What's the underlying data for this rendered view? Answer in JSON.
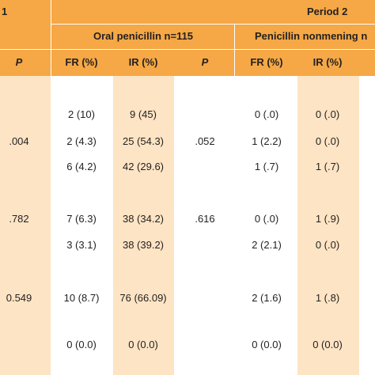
{
  "header": {
    "period1_fragment": "1",
    "period2_label": "Period 2",
    "oral_penicillin_label": "Oral penicillin n=115",
    "penicillin_nonmening_label": "Penicillin nonmening n",
    "columns": {
      "p_left": "P",
      "fr_oral": "FR (%)",
      "ir_oral": "IR (%)",
      "p_mid": "P",
      "fr_nonmening": "FR (%)",
      "ir_nonmening": "IR (%)"
    }
  },
  "rows": [
    {
      "p_left": "",
      "fr_oral": "2 (10)",
      "ir_oral": "9 (45)",
      "p_mid": "",
      "fr_nonmening": "0 (.0)",
      "ir_nonmening": "0 (.0)"
    },
    {
      "p_left": ".004",
      "fr_oral": "2 (4.3)",
      "ir_oral": "25 (54.3)",
      "p_mid": ".052",
      "fr_nonmening": "1 (2.2)",
      "ir_nonmening": "0 (.0)"
    },
    {
      "p_left": "",
      "fr_oral": "6 (4.2)",
      "ir_oral": "42 (29.6)",
      "p_mid": "",
      "fr_nonmening": "1 (.7)",
      "ir_nonmening": "1 (.7)"
    },
    {
      "p_left": ".782",
      "fr_oral": "7 (6.3)",
      "ir_oral": "38 (34.2)",
      "p_mid": ".616",
      "fr_nonmening": "0 (.0)",
      "ir_nonmening": "1 (.9)"
    },
    {
      "p_left": "",
      "fr_oral": "3 (3.1)",
      "ir_oral": "38 (39.2)",
      "p_mid": "",
      "fr_nonmening": "2 (2.1)",
      "ir_nonmening": "0 (.0)"
    },
    {
      "p_left": "0.549",
      "fr_oral": "10 (8.7)",
      "ir_oral": "76 (66.09)",
      "p_mid": "",
      "fr_nonmening": "2 (1.6)",
      "ir_nonmening": "1 (.8)"
    },
    {
      "p_left": "",
      "fr_oral": "0 (0.0)",
      "ir_oral": "0 (0.0)",
      "p_mid": "",
      "fr_nonmening": "0 (0.0)",
      "ir_nonmening": "0 (0.0)"
    }
  ],
  "colors": {
    "header_orange": "#f5a845",
    "light_orange": "#fde4c4",
    "text": "#231f20"
  }
}
